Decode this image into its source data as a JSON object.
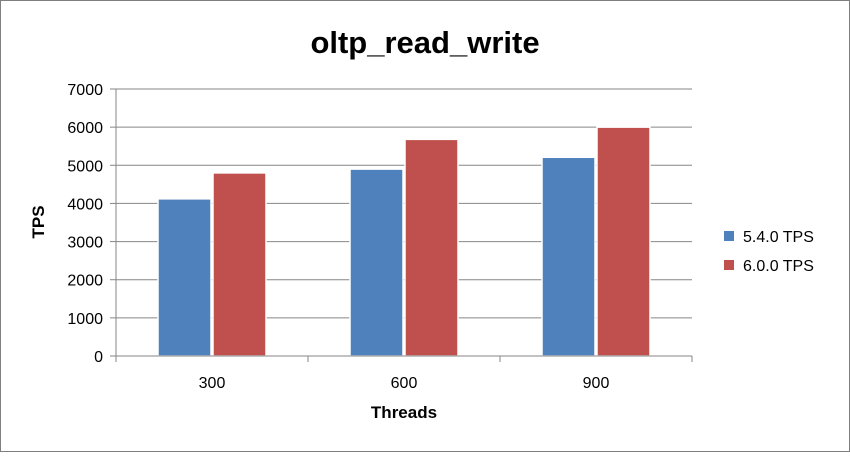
{
  "chart_data": {
    "type": "bar",
    "title": "oltp_read_write",
    "xlabel": "Threads",
    "ylabel": "TPS",
    "categories": [
      "300",
      "600",
      "900"
    ],
    "ylim": [
      0,
      7000
    ],
    "yticks": [
      0,
      1000,
      2000,
      3000,
      4000,
      5000,
      6000,
      7000
    ],
    "grid": true,
    "legend_position": "right",
    "series": [
      {
        "name": "5.4.0 TPS",
        "color": "#4f81bd",
        "values": [
          4120,
          4900,
          5210
        ]
      },
      {
        "name": "6.0.0 TPS",
        "color": "#c0504d",
        "values": [
          4800,
          5680,
          6000
        ]
      }
    ]
  }
}
